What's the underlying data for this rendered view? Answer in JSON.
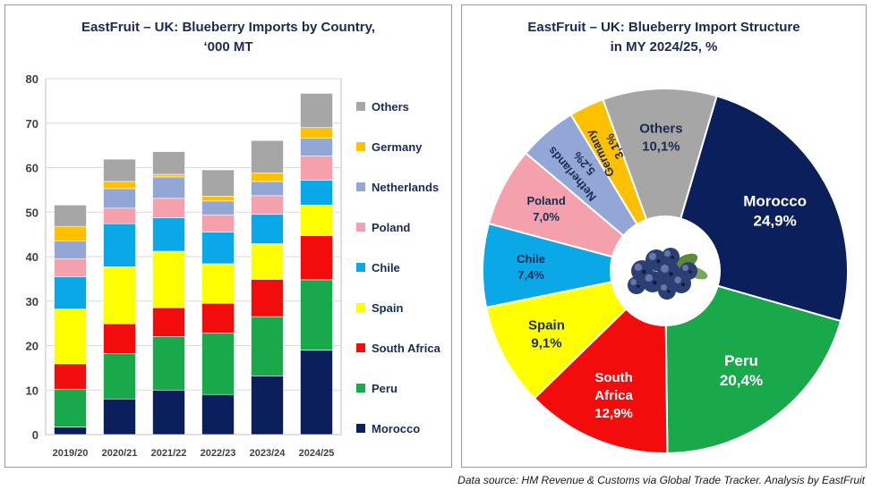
{
  "source": "Data source: HM Revenue & Customs via Global Trade Tracker. Analysis by EastFruit",
  "chart_data": [
    {
      "type": "bar",
      "stacked": true,
      "title_lines": [
        "EastFruit – UK: Blueberry Imports by Country,",
        "‘000 MT"
      ],
      "categories": [
        "2019/20",
        "2020/21",
        "2021/22",
        "2022/23",
        "2023/24",
        "2024/25"
      ],
      "ylim": [
        0,
        80
      ],
      "yticks": [
        0,
        10,
        20,
        30,
        40,
        50,
        60,
        70,
        80
      ],
      "grid": true,
      "legend_position": "right",
      "series": [
        {
          "name": "Morocco",
          "color": "#0b1f5c",
          "values": [
            1.7,
            8.0,
            10.0,
            9.0,
            13.2,
            19.0
          ]
        },
        {
          "name": "Peru",
          "color": "#19a84a",
          "values": [
            8.5,
            10.2,
            12.0,
            13.8,
            13.3,
            15.8
          ]
        },
        {
          "name": "South Africa",
          "color": "#f20c0c",
          "values": [
            5.7,
            6.7,
            6.5,
            6.7,
            8.4,
            9.9
          ]
        },
        {
          "name": "Spain",
          "color": "#ffff00",
          "values": [
            12.3,
            12.8,
            12.7,
            8.9,
            8.0,
            6.9
          ]
        },
        {
          "name": "Chile",
          "color": "#0aa8e6",
          "values": [
            7.3,
            9.7,
            7.5,
            7.1,
            6.6,
            5.6
          ]
        },
        {
          "name": "Poland",
          "color": "#f4a0ad",
          "values": [
            4.0,
            3.5,
            4.4,
            3.9,
            4.2,
            5.4
          ]
        },
        {
          "name": "Netherlands",
          "color": "#93a7d6",
          "values": [
            4.0,
            4.4,
            4.8,
            3.1,
            3.2,
            4.0
          ]
        },
        {
          "name": "Germany",
          "color": "#ffc000",
          "values": [
            3.3,
            1.6,
            0.6,
            1.1,
            1.9,
            2.4
          ]
        },
        {
          "name": "Others",
          "color": "#a6a6a6",
          "values": [
            4.8,
            5.0,
            5.1,
            5.9,
            7.3,
            7.7
          ]
        }
      ]
    },
    {
      "type": "pie",
      "donut": true,
      "title_lines": [
        "EastFruit – UK: Blueberry Import Structure",
        "in MY 2024/25, %"
      ],
      "center_image": "blueberries-photo",
      "slices": [
        {
          "name": "Morocco",
          "value": 24.9,
          "label": "24,9%",
          "color": "#0b1f5c",
          "text_color": "#ffffff"
        },
        {
          "name": "Peru",
          "value": 20.4,
          "label": "20,4%",
          "color": "#19a84a",
          "text_color": "#ffffff"
        },
        {
          "name": "South Africa",
          "name_lines": [
            "South",
            "Africa"
          ],
          "value": 12.9,
          "label": "12,9%",
          "color": "#f20c0c",
          "text_color": "#ffffff"
        },
        {
          "name": "Spain",
          "value": 9.1,
          "label": "9,1%",
          "color": "#ffff00",
          "text_color": "#1a2a55"
        },
        {
          "name": "Chile",
          "value": 7.4,
          "label": "7,4%",
          "color": "#0aa8e6",
          "text_color": "#1a2a55"
        },
        {
          "name": "Poland",
          "value": 7.0,
          "label": "7,0%",
          "color": "#f4a0ad",
          "text_color": "#1a2a55"
        },
        {
          "name": "Netherlands",
          "value": 5.2,
          "label": "5,2%",
          "color": "#93a7d6",
          "text_color": "#1a2a55",
          "rotate": true
        },
        {
          "name": "Germany",
          "value": 3.1,
          "label": "3,1%",
          "color": "#ffc000",
          "text_color": "#1a2a55",
          "rotate": true
        },
        {
          "name": "Others",
          "value": 10.1,
          "label": "10,1%",
          "color": "#a6a6a6",
          "text_color": "#1a2a55"
        }
      ]
    }
  ]
}
